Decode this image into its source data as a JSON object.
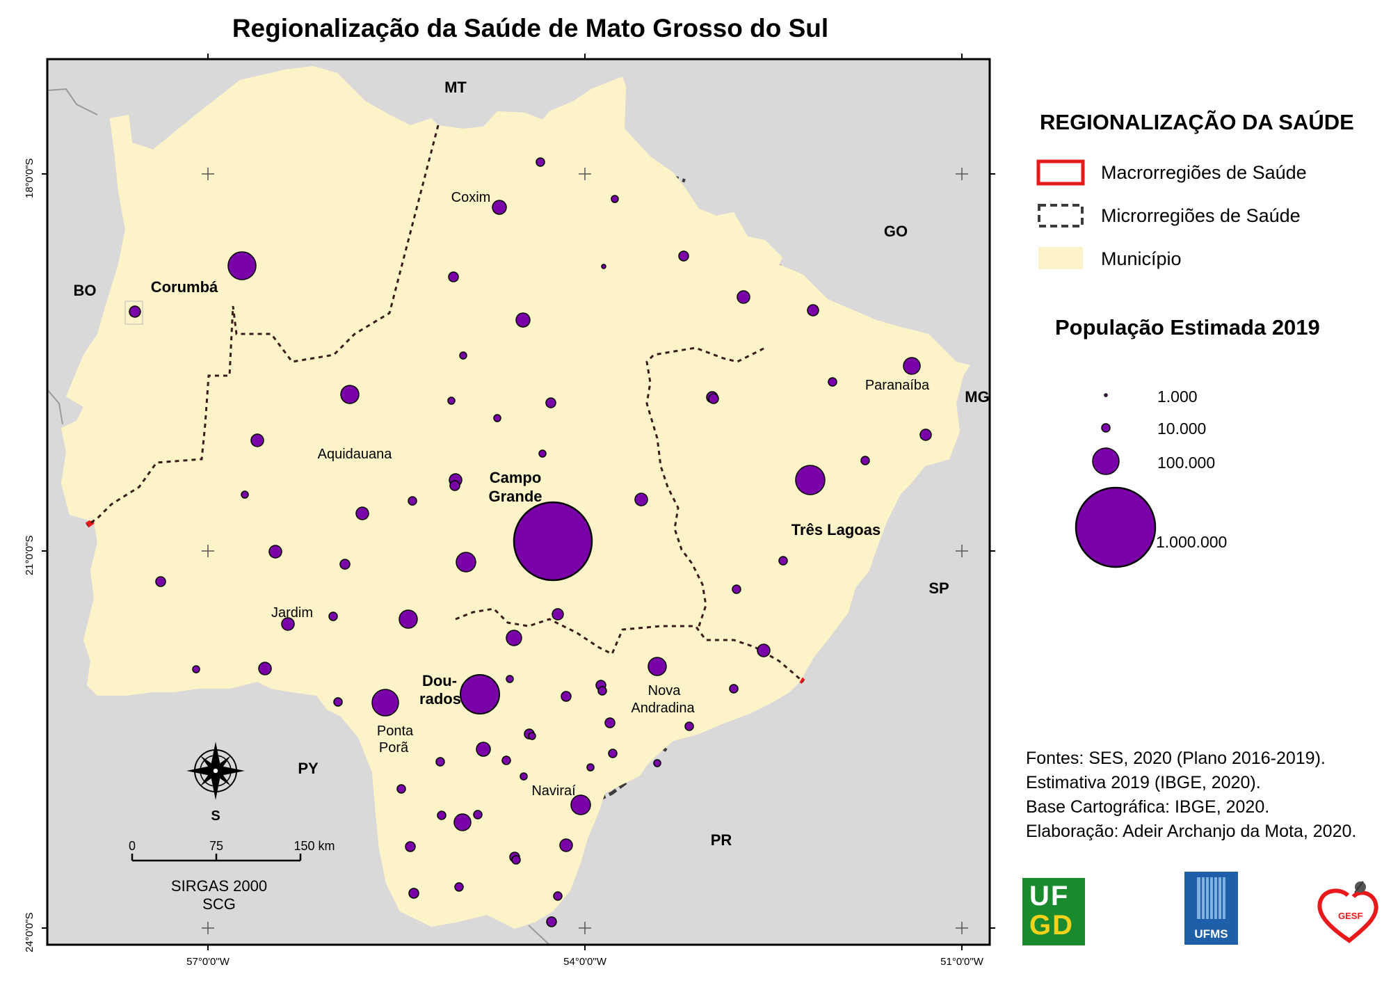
{
  "title": "Regionalização da Saúde de Mato Grosso do Sul",
  "colors": {
    "state_fill": "#fdf3c8",
    "outside_fill": "#d9d9d9",
    "macro_border": "#e8191a",
    "micro_border": "#3c3c3c",
    "circle_fill": "#7a00a8",
    "circle_stroke": "#000000"
  },
  "neighbors": {
    "mt": "MT",
    "go": "GO",
    "mg": "MG",
    "sp": "SP",
    "pr": "PR",
    "py": "PY",
    "bo": "BO"
  },
  "places": {
    "corumba": "Corumbá",
    "coxim": "Coxim",
    "aquidauana": "Aquidauana",
    "campo_grande_1": "Campo",
    "campo_grande_2": "Grande",
    "paranaiba": "Paranaíba",
    "tres_lagoas": "Três Lagoas",
    "jardim": "Jardim",
    "dourados_1": "Dou-",
    "dourados_2": "rados",
    "nova_andradina_1": "Nova",
    "nova_andradina_2": "Andradina",
    "ponta_pora_1": "Ponta",
    "ponta_pora_2": "Porã",
    "navirai": "Naviraí"
  },
  "graticule": {
    "lat_18": "18°0'0\"S",
    "lat_21": "21°0'0\"S",
    "lat_24": "24°0'0\"S",
    "lon_57": "57°0'0\"W",
    "lon_54": "54°0'0\"W",
    "lon_51": "51°0'0\"W"
  },
  "compass": {
    "south": "S"
  },
  "scalebar": {
    "t0": "0",
    "t1": "75",
    "t2": "150 km",
    "datum": "SIRGAS 2000",
    "system": "SCG"
  },
  "legend": {
    "title": "REGIONALIZAÇÃO DA SAÚDE",
    "macro": "Macrorregiões de Saúde",
    "micro": "Microrregiões de Saúde",
    "municipio": "Município",
    "pop_title": "População Estimada 2019",
    "pop_1": "1.000",
    "pop_2": "10.000",
    "pop_3": "100.000",
    "pop_4": "1.000.000"
  },
  "sources": {
    "line1": "Fontes: SES, 2020 (Plano 2016-2019).",
    "line2": "Estimativa 2019 (IBGE, 2020).",
    "line3": "Base Cartográfica: IBGE, 2020.",
    "line4": "Elaboração: Adeir Archanjo da Mota, 2020."
  },
  "logos": {
    "ufgd_1": "UF",
    "ufgd_2": "GD",
    "ufms": "UFMS",
    "gesf": "GESF"
  }
}
